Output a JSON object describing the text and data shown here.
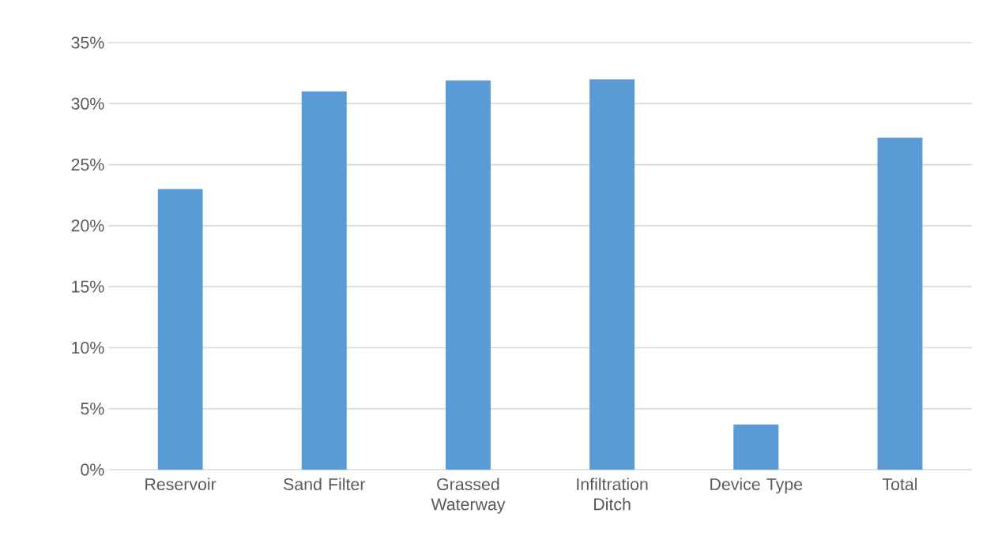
{
  "chart_data": {
    "type": "bar",
    "categories": [
      "Reservoir",
      "Sand Filter",
      "Grassed Waterway",
      "Infiltration Ditch",
      "Device Type",
      "Total"
    ],
    "values": [
      23,
      31,
      31.9,
      32,
      3.7,
      27.2
    ],
    "color": "#5b9bd5",
    "ylim": [
      0,
      35
    ],
    "yticks": [
      {
        "value": 0,
        "label": "0%"
      },
      {
        "value": 5,
        "label": "5%"
      },
      {
        "value": 10,
        "label": "10%"
      },
      {
        "value": 15,
        "label": "15%"
      },
      {
        "value": 20,
        "label": "20%"
      },
      {
        "value": 25,
        "label": "25%"
      },
      {
        "value": 30,
        "label": "30%"
      },
      {
        "value": 35,
        "label": "35%"
      }
    ],
    "grid": "y"
  }
}
